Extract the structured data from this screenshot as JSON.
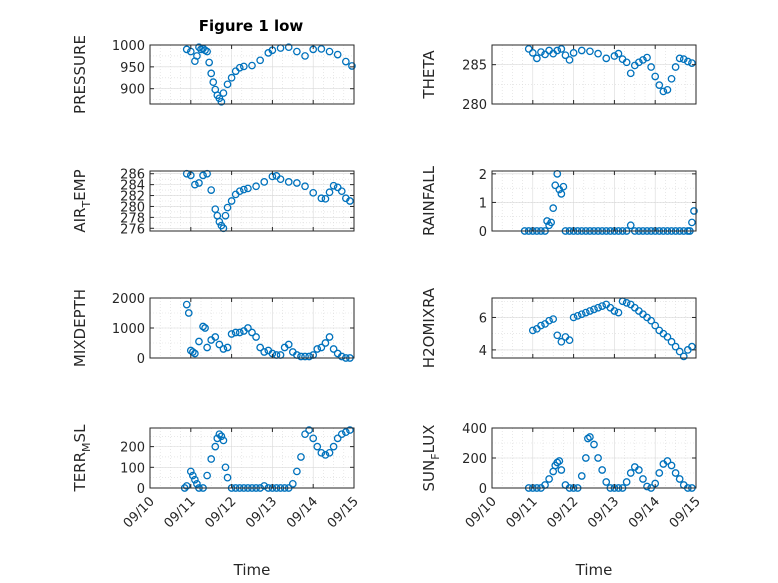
{
  "figure_title": "Figure 1 low",
  "colors": {
    "marker": "#0072BD",
    "axis": "#262626",
    "grid": "#d9d9d9"
  },
  "chart_data": [
    {
      "type": "scatter",
      "ylabel": "PRESSURE",
      "xlim": [
        "09/10",
        "09/15"
      ],
      "ylim": [
        865,
        1000
      ],
      "yticks": [
        900,
        950,
        1000
      ],
      "ytick_labels": [
        "900",
        "950",
        "1000"
      ],
      "xticks": [],
      "xlabel": "",
      "grid": true,
      "x": [
        0.9,
        1.0,
        1.1,
        1.15,
        1.2,
        1.25,
        1.3,
        1.35,
        1.4,
        1.45,
        1.5,
        1.55,
        1.6,
        1.65,
        1.7,
        1.75,
        1.8,
        1.9,
        2.0,
        2.1,
        2.2,
        2.3,
        2.5,
        2.7,
        2.9,
        3.0,
        3.2,
        3.4,
        3.6,
        3.8,
        4.0,
        4.2,
        4.4,
        4.6,
        4.8,
        4.95
      ],
      "y": [
        990,
        985,
        963,
        975,
        995,
        990,
        992,
        988,
        985,
        960,
        935,
        915,
        898,
        885,
        878,
        870,
        890,
        910,
        925,
        940,
        948,
        951,
        953,
        965,
        982,
        988,
        993,
        995,
        985,
        975,
        990,
        991,
        985,
        978,
        962,
        952
      ]
    },
    {
      "type": "scatter",
      "ylabel": "THETA",
      "xlim": [
        "09/10",
        "09/15"
      ],
      "ylim": [
        280,
        287.5
      ],
      "yticks": [
        280,
        285
      ],
      "ytick_labels": [
        "280",
        "285"
      ],
      "xticks": [],
      "xlabel": "",
      "grid": true,
      "x": [
        0.9,
        1.0,
        1.1,
        1.2,
        1.3,
        1.4,
        1.5,
        1.6,
        1.7,
        1.8,
        1.9,
        2.0,
        2.2,
        2.4,
        2.6,
        2.8,
        3.0,
        3.1,
        3.2,
        3.3,
        3.4,
        3.5,
        3.6,
        3.7,
        3.8,
        3.9,
        4.0,
        4.1,
        4.2,
        4.3,
        4.4,
        4.5,
        4.6,
        4.7,
        4.8,
        4.9
      ],
      "y": [
        287,
        286.5,
        285.8,
        286.6,
        286.3,
        286.8,
        286.4,
        286.8,
        287,
        286.2,
        285.6,
        286.5,
        286.8,
        286.7,
        286.4,
        285.8,
        286.1,
        286.4,
        285.7,
        285.3,
        283.9,
        284.9,
        285.3,
        285.6,
        285.9,
        284.7,
        283.5,
        282.4,
        281.6,
        281.8,
        283.2,
        284.7,
        285.8,
        285.7,
        285.4,
        285.2
      ]
    },
    {
      "type": "scatter",
      "ylabel": "AIR_TEMP",
      "xlim": [
        "09/10",
        "09/15"
      ],
      "ylim": [
        275.5,
        286.5
      ],
      "yticks": [
        276,
        278,
        280,
        282,
        284,
        286
      ],
      "ytick_labels": [
        "276",
        "278",
        "280",
        "282",
        "284",
        "286"
      ],
      "xticks": [],
      "xlabel": "",
      "grid": true,
      "x": [
        0.9,
        1.0,
        1.1,
        1.2,
        1.3,
        1.4,
        1.5,
        1.6,
        1.65,
        1.7,
        1.75,
        1.8,
        1.85,
        1.9,
        2.0,
        2.1,
        2.2,
        2.3,
        2.4,
        2.6,
        2.8,
        3.0,
        3.1,
        3.2,
        3.4,
        3.6,
        3.8,
        4.0,
        4.2,
        4.3,
        4.4,
        4.5,
        4.6,
        4.7,
        4.8,
        4.9
      ],
      "y": [
        286,
        285.7,
        284,
        284.3,
        285.7,
        286,
        283,
        279.5,
        278.3,
        277.2,
        276.5,
        276,
        278.3,
        279.8,
        281,
        282.2,
        282.8,
        283.1,
        283.3,
        283.7,
        284.5,
        285.5,
        285.6,
        285,
        284.5,
        284.3,
        283.7,
        282.5,
        281.5,
        281.4,
        282.6,
        283.8,
        283.5,
        282.8,
        281.5,
        281
      ]
    },
    {
      "type": "scatter",
      "ylabel": "RAINFALL",
      "xlim": [
        "09/10",
        "09/15"
      ],
      "ylim": [
        0,
        2.1
      ],
      "yticks": [
        0,
        1,
        2
      ],
      "ytick_labels": [
        "0",
        "1",
        "2"
      ],
      "xticks": [],
      "xlabel": "",
      "grid": true,
      "x": [
        0.8,
        0.9,
        1.0,
        1.1,
        1.2,
        1.3,
        1.35,
        1.4,
        1.45,
        1.5,
        1.55,
        1.6,
        1.65,
        1.7,
        1.75,
        1.8,
        1.9,
        2.0,
        2.1,
        2.2,
        2.3,
        2.4,
        2.5,
        2.6,
        2.7,
        2.8,
        2.9,
        3.0,
        3.1,
        3.2,
        3.3,
        3.4,
        3.5,
        3.6,
        3.7,
        3.8,
        3.9,
        4.0,
        4.1,
        4.2,
        4.3,
        4.4,
        4.5,
        4.6,
        4.7,
        4.8,
        4.85,
        4.9,
        4.95
      ],
      "y": [
        0,
        0,
        0,
        0,
        0,
        0,
        0.35,
        0.2,
        0.3,
        0.8,
        1.6,
        2.0,
        1.45,
        1.3,
        1.55,
        0,
        0,
        0,
        0,
        0,
        0,
        0,
        0,
        0,
        0,
        0,
        0,
        0,
        0,
        0,
        0,
        0.2,
        0,
        0,
        0,
        0,
        0,
        0,
        0,
        0,
        0,
        0,
        0,
        0,
        0,
        0,
        0,
        0.3,
        0.7
      ]
    },
    {
      "type": "scatter",
      "ylabel": "MIXDEPTH",
      "xlim": [
        "09/10",
        "09/15"
      ],
      "ylim": [
        0,
        2000
      ],
      "yticks": [
        0,
        1000,
        2000
      ],
      "ytick_labels": [
        "0",
        "1000",
        "2000"
      ],
      "xticks": [],
      "xlabel": "",
      "grid": true,
      "x": [
        0.9,
        0.95,
        1.0,
        1.05,
        1.1,
        1.2,
        1.3,
        1.35,
        1.4,
        1.5,
        1.6,
        1.7,
        1.8,
        1.9,
        2.0,
        2.1,
        2.2,
        2.3,
        2.4,
        2.5,
        2.6,
        2.7,
        2.8,
        2.9,
        3.0,
        3.1,
        3.2,
        3.3,
        3.4,
        3.5,
        3.6,
        3.7,
        3.8,
        3.9,
        4.0,
        4.1,
        4.2,
        4.3,
        4.4,
        4.5,
        4.6,
        4.7,
        4.8,
        4.9
      ],
      "y": [
        1780,
        1500,
        250,
        200,
        150,
        550,
        1050,
        1000,
        350,
        600,
        700,
        450,
        300,
        350,
        800,
        850,
        850,
        900,
        1000,
        850,
        700,
        350,
        200,
        250,
        150,
        100,
        100,
        350,
        450,
        200,
        100,
        50,
        50,
        50,
        100,
        300,
        350,
        500,
        700,
        300,
        150,
        50,
        0,
        0
      ]
    },
    {
      "type": "scatter",
      "ylabel": "H2OMIXRA",
      "xlim": [
        "09/10",
        "09/15"
      ],
      "ylim": [
        3.5,
        7.2
      ],
      "yticks": [
        4,
        6
      ],
      "ytick_labels": [
        "4",
        "6"
      ],
      "xticks": [],
      "xlabel": "",
      "grid": true,
      "x": [
        1.0,
        1.1,
        1.2,
        1.3,
        1.4,
        1.5,
        1.6,
        1.7,
        1.8,
        1.9,
        2.0,
        2.1,
        2.2,
        2.3,
        2.4,
        2.5,
        2.6,
        2.7,
        2.8,
        2.9,
        3.0,
        3.1,
        3.2,
        3.3,
        3.4,
        3.5,
        3.6,
        3.7,
        3.8,
        3.9,
        4.0,
        4.1,
        4.2,
        4.3,
        4.4,
        4.5,
        4.6,
        4.7,
        4.8,
        4.9
      ],
      "y": [
        5.2,
        5.3,
        5.5,
        5.6,
        5.8,
        5.9,
        4.9,
        4.5,
        4.8,
        4.6,
        6,
        6.1,
        6.2,
        6.3,
        6.4,
        6.5,
        6.6,
        6.7,
        6.8,
        6.6,
        6.4,
        6.3,
        7,
        6.9,
        6.8,
        6.6,
        6.4,
        6.2,
        6.0,
        5.8,
        5.5,
        5.2,
        5.0,
        4.8,
        4.5,
        4.2,
        3.9,
        3.6,
        4.0,
        4.2
      ]
    },
    {
      "type": "scatter",
      "ylabel": "TERR_MSL",
      "xlim": [
        "09/10",
        "09/15"
      ],
      "ylim": [
        0,
        290
      ],
      "yticks": [
        0,
        100,
        200
      ],
      "ytick_labels": [
        "0",
        "100",
        "200"
      ],
      "xticks": [
        "09/10",
        "09/11",
        "09/12",
        "09/13",
        "09/14",
        "09/15"
      ],
      "xlabel": "Time",
      "grid": true,
      "x": [
        0.85,
        0.9,
        1.0,
        1.05,
        1.1,
        1.15,
        1.2,
        1.3,
        1.4,
        1.5,
        1.6,
        1.65,
        1.7,
        1.75,
        1.8,
        1.85,
        1.9,
        2.0,
        2.1,
        2.2,
        2.3,
        2.4,
        2.5,
        2.6,
        2.7,
        2.8,
        2.9,
        3.0,
        3.1,
        3.2,
        3.3,
        3.4,
        3.5,
        3.6,
        3.7,
        3.8,
        3.9,
        4.0,
        4.1,
        4.2,
        4.3,
        4.4,
        4.5,
        4.6,
        4.7,
        4.8,
        4.9
      ],
      "y": [
        0,
        10,
        80,
        60,
        40,
        20,
        0,
        0,
        60,
        140,
        200,
        240,
        260,
        250,
        230,
        100,
        50,
        0,
        0,
        0,
        0,
        0,
        0,
        0,
        0,
        10,
        0,
        0,
        0,
        0,
        0,
        0,
        20,
        80,
        150,
        260,
        280,
        240,
        200,
        170,
        160,
        170,
        200,
        240,
        260,
        270,
        280
      ]
    },
    {
      "type": "scatter",
      "ylabel": "SUN_FLUX",
      "xlim": [
        "09/10",
        "09/15"
      ],
      "ylim": [
        0,
        400
      ],
      "yticks": [
        0,
        200,
        400
      ],
      "ytick_labels": [
        "0",
        "200",
        "400"
      ],
      "xticks": [
        "09/10",
        "09/11",
        "09/12",
        "09/13",
        "09/14",
        "09/15"
      ],
      "xlabel": "Time",
      "grid": true,
      "x": [
        0.9,
        1.0,
        1.1,
        1.2,
        1.3,
        1.4,
        1.5,
        1.55,
        1.6,
        1.65,
        1.7,
        1.8,
        1.9,
        2.0,
        2.1,
        2.2,
        2.3,
        2.35,
        2.4,
        2.5,
        2.6,
        2.7,
        2.8,
        2.9,
        3.0,
        3.1,
        3.2,
        3.3,
        3.4,
        3.5,
        3.6,
        3.7,
        3.8,
        3.9,
        4.0,
        4.1,
        4.2,
        4.3,
        4.4,
        4.5,
        4.6,
        4.7,
        4.8,
        4.9
      ],
      "y": [
        0,
        0,
        0,
        0,
        20,
        60,
        110,
        150,
        170,
        180,
        120,
        20,
        0,
        0,
        0,
        80,
        200,
        330,
        340,
        290,
        200,
        120,
        40,
        0,
        0,
        0,
        0,
        40,
        100,
        140,
        120,
        60,
        10,
        0,
        30,
        100,
        160,
        180,
        150,
        100,
        60,
        20,
        0,
        0
      ]
    }
  ]
}
